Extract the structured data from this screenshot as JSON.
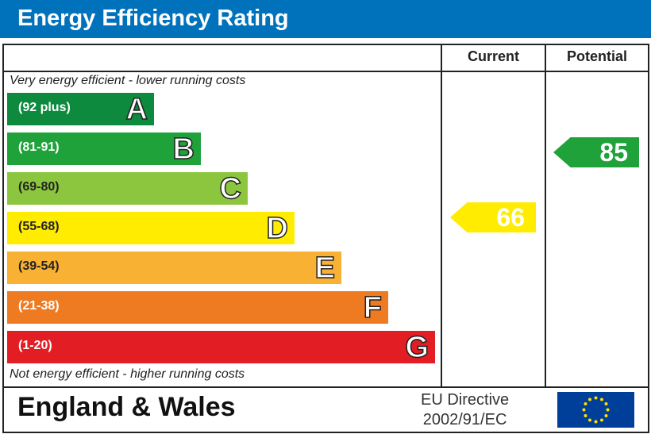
{
  "title": "Energy Efficiency Rating",
  "columns": {
    "current": "Current",
    "potential": "Potential"
  },
  "top_note": "Very energy efficient - lower running costs",
  "bottom_note": "Not energy efficient - higher running costs",
  "chart_data": {
    "type": "bar",
    "bands": [
      {
        "letter": "A",
        "range": "(92 plus)",
        "color": "#0d8a3e"
      },
      {
        "letter": "B",
        "range": "(81-91)",
        "color": "#1fa23a"
      },
      {
        "letter": "C",
        "range": "(69-80)",
        "color": "#8cc63f"
      },
      {
        "letter": "D",
        "range": "(55-68)",
        "color": "#ffec00"
      },
      {
        "letter": "E",
        "range": "(39-54)",
        "color": "#f8b133"
      },
      {
        "letter": "F",
        "range": "(21-38)",
        "color": "#ee7b22"
      },
      {
        "letter": "G",
        "range": "(1-20)",
        "color": "#e21d24"
      }
    ],
    "current": {
      "value": 66,
      "band": "D",
      "color": "#ffec00"
    },
    "potential": {
      "value": 85,
      "band": "B",
      "color": "#1fa23a"
    }
  },
  "footer": {
    "region": "England & Wales",
    "directive_line1": "EU Directive",
    "directive_line2": "2002/91/EC",
    "flag_icon": "eu-flag-icon"
  }
}
